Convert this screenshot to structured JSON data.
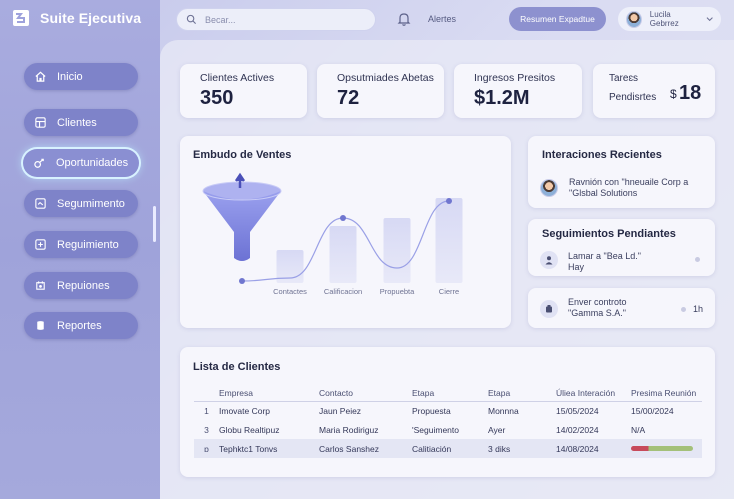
{
  "app": {
    "title": "Suite Ejecutiva"
  },
  "sidebar": {
    "items": [
      {
        "label": "Inicio",
        "icon": "home-icon"
      },
      {
        "label": "Clientes",
        "icon": "clients-icon"
      },
      {
        "label": "Oportunidades",
        "icon": "handshake-icon"
      },
      {
        "label": "Segumimento",
        "icon": "tracking-icon"
      },
      {
        "label": "Reguimiento",
        "icon": "follow-up-icon"
      },
      {
        "label": "Repuiones",
        "icon": "meetings-icon"
      },
      {
        "label": "Reportes",
        "icon": "reports-icon"
      }
    ],
    "active_index": 2
  },
  "topbar": {
    "search_placeholder": "Becar...",
    "alerts_label": "Alertes",
    "summary_button": "Resumen Expadtue",
    "user_name": "Lucila Gebrrez"
  },
  "stats": [
    {
      "label": "Clientes Actives",
      "value": "350"
    },
    {
      "label": "Opsutmiades Abetas",
      "value": "72"
    },
    {
      "label": "Ingresos Presitos",
      "value": "$1.2M"
    },
    {
      "label_line1": "Tareɛs",
      "label_line2": "Pendisrtes",
      "prefix": "$",
      "value": "18"
    }
  ],
  "funnel": {
    "title": "Embudo de Ventes",
    "stages": [
      "Contactes",
      "Calificacion",
      "Propuebta",
      "Cierre"
    ]
  },
  "chart_data": {
    "type": "bar",
    "categories": [
      "Contactes",
      "Calificacion",
      "Propuebta",
      "Cierre"
    ],
    "title": "Embudo de Ventes",
    "bars_relative_height": [
      0.33,
      0.57,
      0.65,
      0.85
    ],
    "line_relative_height": [
      0.05,
      0.65,
      0.15,
      0.82
    ]
  },
  "interactions": {
    "title": "Interaciones Recientes",
    "items": [
      {
        "line1": "Ravnión con \"hneuaile Corp a",
        "line2": "\"Glsbal Solutions"
      }
    ]
  },
  "followups": {
    "title": "Seguimientos Pendiantes",
    "items": [
      {
        "line1": "Lamar a \"Bea Ld.\"",
        "line2": "Hay",
        "time": ""
      },
      {
        "line1": "Enver controto",
        "line2": "\"Gamma S.A.\"",
        "time": "1h"
      }
    ]
  },
  "clients": {
    "title": "Lista de Clientes",
    "headers": [
      "Empresa",
      "Contacto",
      "Etapa",
      "Etapa",
      "Úliea Interación",
      "Presima Reunión"
    ],
    "rows": [
      {
        "idx": "1",
        "empresa": "Imovate Corp",
        "contacto": "Jaun Peiez",
        "etapa": "Propuesta",
        "etapa2": "Monnna",
        "ultima": "15/05/2024",
        "proxima": "15/00/2024"
      },
      {
        "idx": "3",
        "empresa": "Globu Realtipuz",
        "contacto": "Maria Rodiriguz",
        "etapa": "'Seguimento",
        "etapa2": "Ayer",
        "ultima": "14/02/2024",
        "proxima": "N/A"
      },
      {
        "idx": "ɒ",
        "empresa": "Tephktc1  Tonvs",
        "contacto": "Carlos Sanshez",
        "etapa": "Calitiación",
        "etapa2": "3 diks",
        "ultima": "14/08/2024",
        "proxima": ""
      }
    ]
  },
  "colors": {
    "accent": "#8d91cf",
    "sidebar": "#a9acdf",
    "funnel": "#7e85dd"
  }
}
